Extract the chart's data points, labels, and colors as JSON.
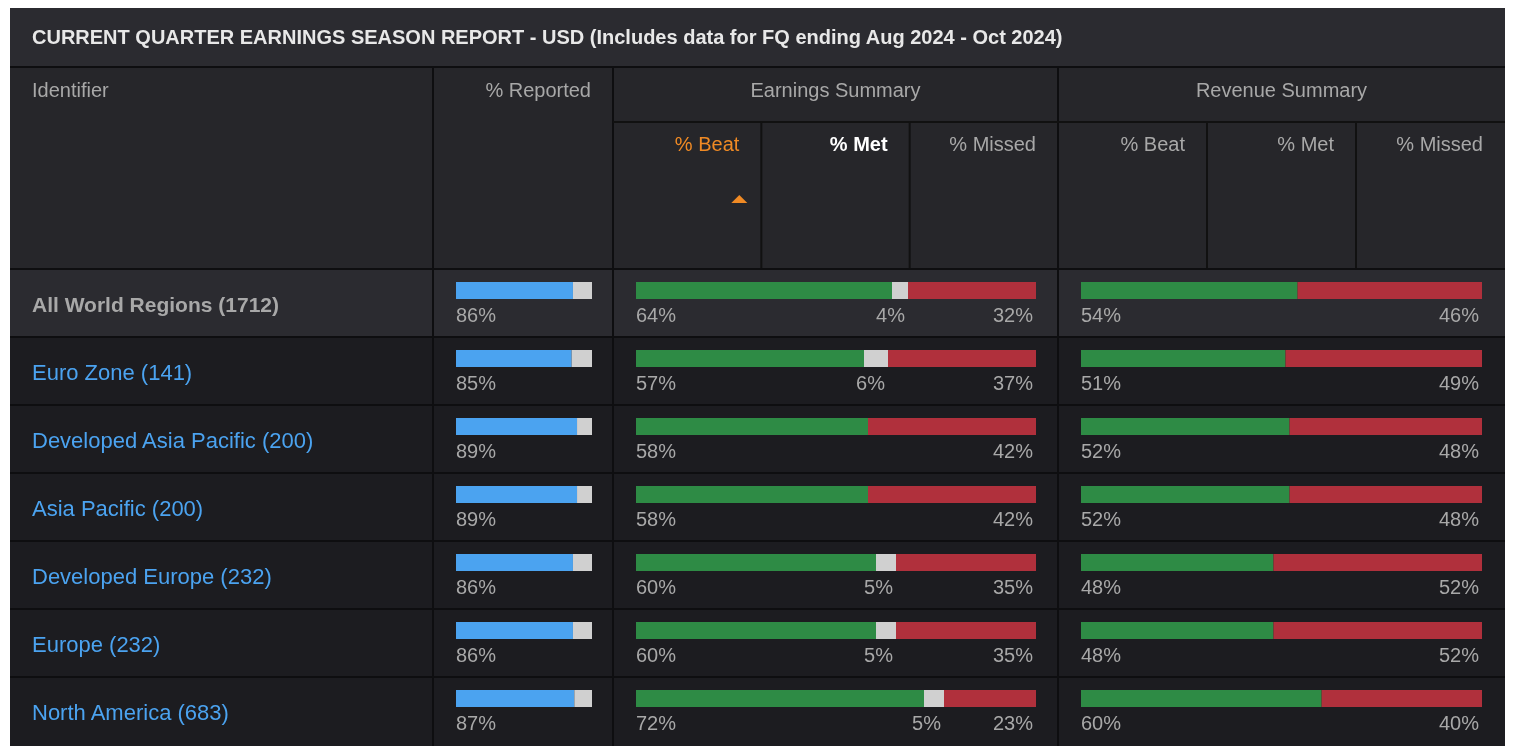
{
  "chart_data": [
    {
      "type": "bar",
      "orientation": "horizontal",
      "stacked": true,
      "title": "CURRENT QUARTER EARNINGS SEASON REPORT - USD (Includes data for FQ ending Aug 2024 - Oct 2024)",
      "xlabel": "% Reported",
      "ylabel": "Identifier",
      "categories": [
        "All World Regions (1712)",
        "Euro Zone (141)",
        "Developed Asia Pacific (200)",
        "Asia Pacific (200)",
        "Developed Europe (232)",
        "Europe (232)",
        "North America (683)"
      ],
      "xlim": [
        0,
        100
      ],
      "tick_labels": "y",
      "series": [
        {
          "color": "#4ba3f0",
          "values": [
            86,
            85,
            89,
            89,
            86,
            86,
            87
          ],
          "value_labels": [
            "86%",
            "85%",
            "89%",
            "89%",
            "86%",
            "86%",
            "87%"
          ]
        },
        {
          "color": "#d0d0d0",
          "values": [
            14,
            15,
            11,
            11,
            14,
            14,
            13
          ]
        }
      ]
    },
    {
      "type": "bar",
      "orientation": "horizontal",
      "stacked": true,
      "title": "Earnings Summary",
      "annotations": [
        "% Beat",
        "% Met",
        "% Missed"
      ],
      "categories": [
        null,
        null,
        null,
        null,
        null,
        null,
        null
      ],
      "xlim": [
        0,
        100
      ],
      "series": [
        {
          "color": "#2e8b45",
          "values": [
            64,
            57,
            58,
            58,
            60,
            60,
            72
          ],
          "value_labels": [
            "64%",
            "57%",
            "58%",
            "58%",
            "60%",
            "60%",
            "72%"
          ]
        },
        {
          "color": "#d0d0d0",
          "values": [
            4,
            6,
            0,
            0,
            5,
            5,
            5
          ],
          "value_labels": [
            "4%",
            "6%",
            null,
            null,
            "5%",
            "5%",
            "5%"
          ]
        },
        {
          "color": "#b0303c",
          "values": [
            32,
            37,
            42,
            42,
            35,
            35,
            23
          ],
          "value_labels": [
            "32%",
            "37%",
            "42%",
            "42%",
            "35%",
            "35%",
            "23%"
          ]
        }
      ]
    },
    {
      "type": "bar",
      "orientation": "horizontal",
      "stacked": true,
      "title": "Revenue Summary",
      "annotations": [
        "% Beat",
        "% Met",
        "% Missed"
      ],
      "categories": [
        null,
        null,
        null,
        null,
        null,
        null,
        null
      ],
      "xlim": [
        0,
        100
      ],
      "series": [
        {
          "color": "#2e8b45",
          "values": [
            54,
            51,
            52,
            52,
            48,
            48,
            60
          ],
          "value_labels": [
            "54%",
            "51%",
            "52%",
            "52%",
            "48%",
            "48%",
            "60%"
          ]
        },
        {
          "color": "#d0d0d0",
          "values": [
            0,
            0,
            0,
            0,
            0,
            0,
            0
          ],
          "value_labels": [
            null,
            null,
            null,
            null,
            null,
            null,
            null
          ]
        },
        {
          "color": "#b0303c",
          "values": [
            46,
            49,
            48,
            48,
            52,
            52,
            40
          ],
          "value_labels": [
            "46%",
            "49%",
            "48%",
            "48%",
            "52%",
            "52%",
            "40%"
          ]
        }
      ]
    }
  ]
}
